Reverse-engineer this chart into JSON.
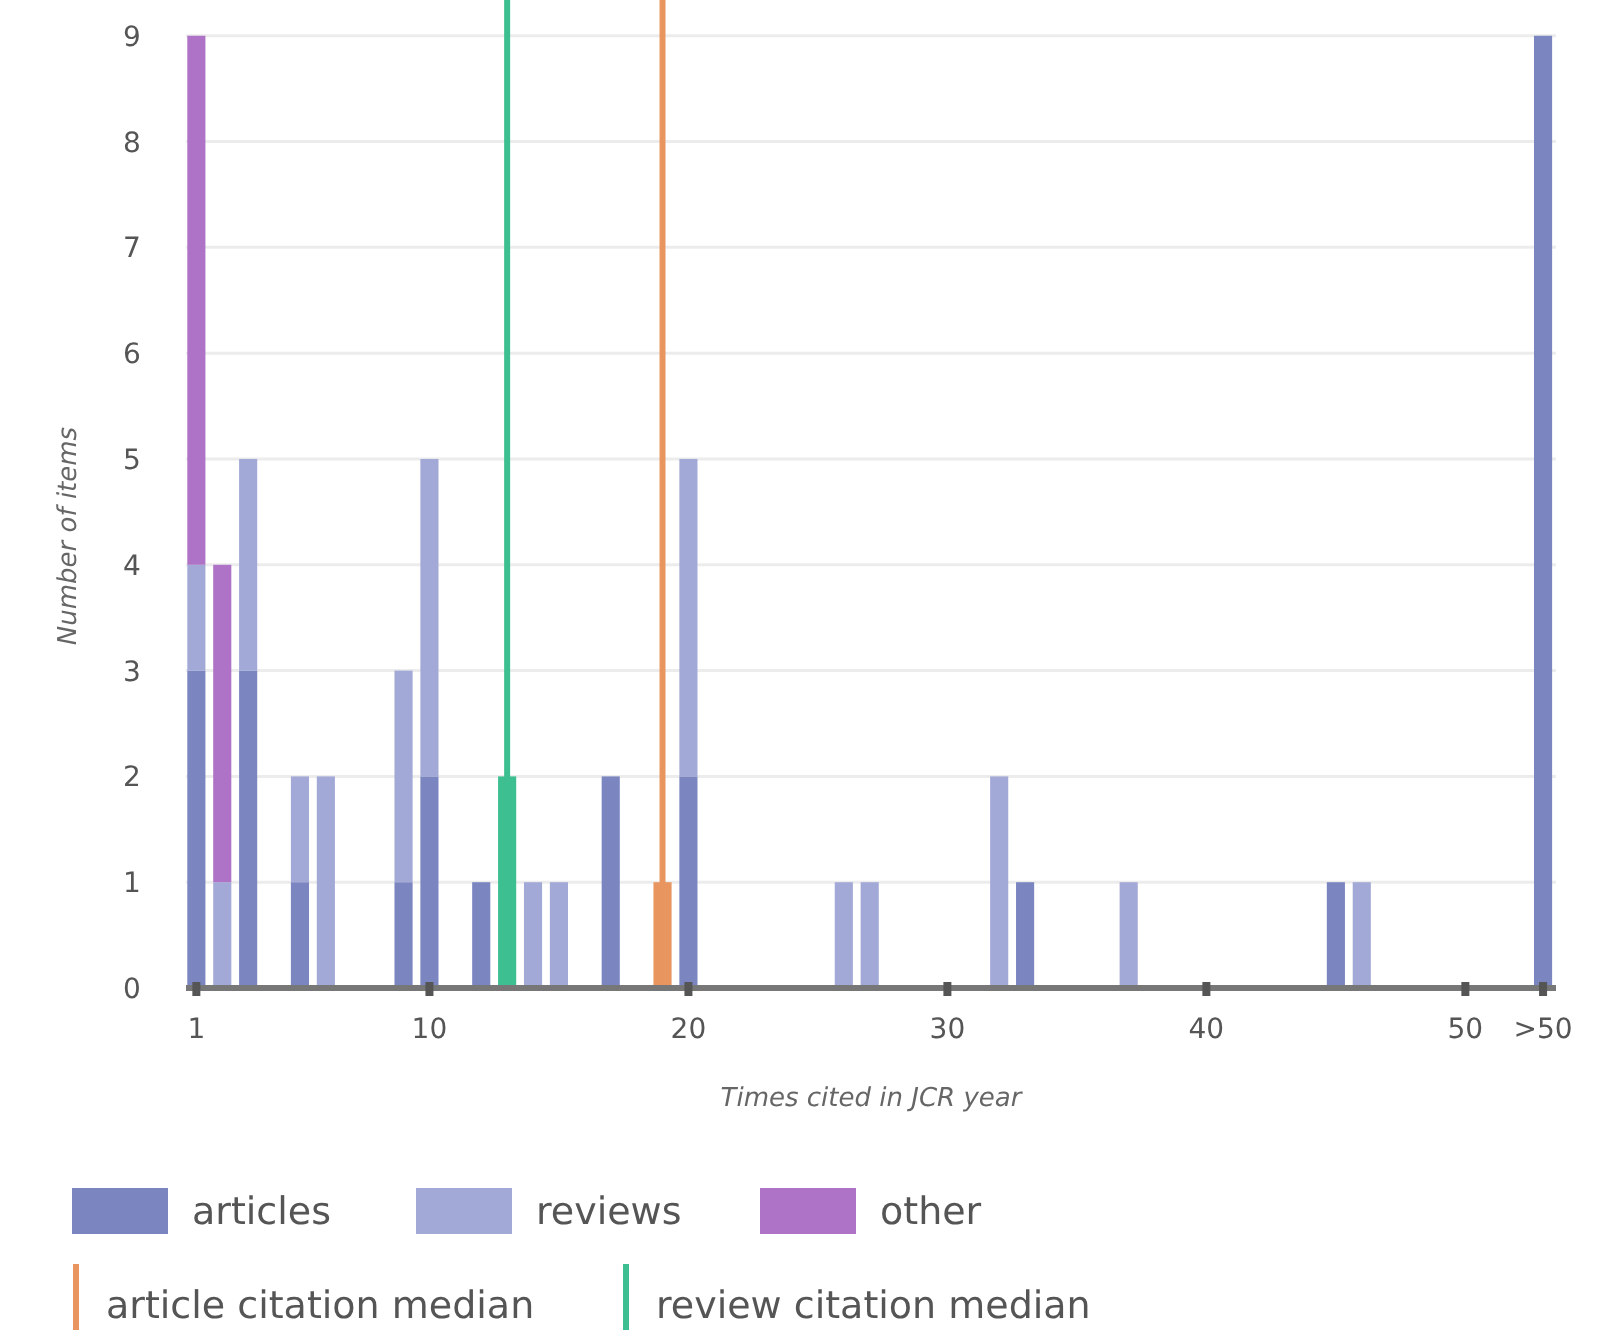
{
  "chart_data": {
    "type": "bar",
    "stacked": true,
    "xlabel": "Times cited in JCR year",
    "ylabel": "Number of items",
    "x": [
      1,
      2,
      3,
      5,
      6,
      9,
      10,
      12,
      13,
      14,
      15,
      17,
      19,
      20,
      26,
      27,
      32,
      33,
      37,
      45,
      46,
      53
    ],
    "series": [
      {
        "name": "articles",
        "color": "#7b86c0",
        "colors": [
          "#7b86c0",
          null,
          "#7b86c0",
          "#7b86c0",
          null,
          "#7b86c0",
          "#7b86c0",
          "#7b86c0",
          null,
          null,
          null,
          "#7b86c0",
          "#e8955f",
          "#7b86c0",
          null,
          null,
          null,
          "#7b86c0",
          null,
          "#7b86c0",
          null,
          "#7b86c0"
        ],
        "values": [
          3,
          null,
          3,
          1,
          null,
          1,
          2,
          1,
          null,
          null,
          null,
          2,
          1,
          2,
          null,
          null,
          null,
          1,
          null,
          1,
          null,
          9
        ]
      },
      {
        "name": "reviews",
        "color": "#a3a9d6",
        "colors": [
          "#a3a9d6",
          "#a3a9d6",
          "#a3a9d6",
          "#a3a9d6",
          "#a3a9d6",
          "#a3a9d6",
          "#a3a9d6",
          null,
          "#3dbf91",
          "#a3a9d6",
          "#a3a9d6",
          null,
          null,
          "#a3a9d6",
          "#a3a9d6",
          "#a3a9d6",
          "#a3a9d6",
          null,
          "#a3a9d6",
          null,
          "#a3a9d6",
          null
        ],
        "values": [
          1,
          1,
          2,
          1,
          2,
          2,
          3,
          null,
          2,
          1,
          1,
          null,
          null,
          3,
          1,
          1,
          2,
          null,
          1,
          null,
          1,
          null
        ]
      },
      {
        "name": "other",
        "color": "#ae73c6",
        "values": [
          5,
          3,
          null,
          null,
          null,
          null,
          null,
          null,
          null,
          null,
          null,
          null,
          null,
          null,
          null,
          null,
          null,
          null,
          null,
          null,
          null,
          null
        ]
      }
    ],
    "ref_lines": [
      {
        "axis": "x",
        "value": 19,
        "label": "article citation median",
        "color": "#e8955f"
      },
      {
        "axis": "x",
        "value": 13,
        "label": "review citation median",
        "color": "#3dbf91"
      }
    ],
    "xlim": [
      0.6,
      53.5
    ],
    "xticks": [
      1,
      10,
      20,
      30,
      40,
      50,
      {
        "value": 53,
        "label": ">50"
      }
    ],
    "ylim": [
      0,
      9.3
    ],
    "yticks": [
      0,
      1,
      2,
      3,
      4,
      5,
      6,
      7,
      8,
      9
    ],
    "grid": "y",
    "legend": "bottom"
  }
}
